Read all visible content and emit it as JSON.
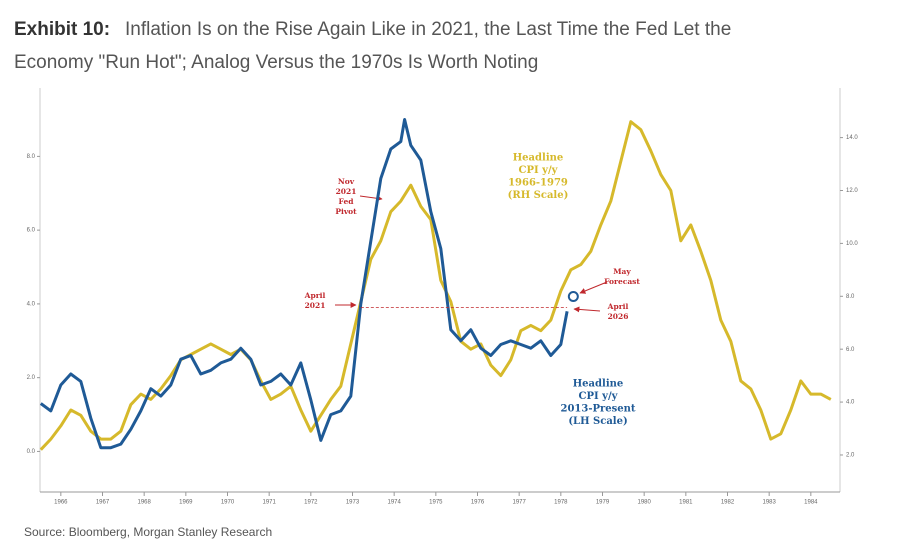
{
  "title_label": "Exhibit 10:",
  "title_lines": [
    "Inflation Is on the Rise Again Like in 2021, the Last Time the Fed Let the",
    "Economy \"Run Hot\"; Analog Versus the 1970s Is Worth Noting"
  ],
  "source": "Source: Bloomberg, Morgan Stanley Research",
  "chart_data": {
    "type": "line",
    "xlim": [
      1965.5,
      1984.7
    ],
    "xticks": [
      1966,
      1967,
      1968,
      1969,
      1970,
      1971,
      1972,
      1973,
      1974,
      1975,
      1976,
      1977,
      1978,
      1979,
      1980,
      1981,
      1982,
      1983,
      1984
    ],
    "ylim": [
      -1.1,
      9.8
    ],
    "yticks": [
      {
        "value": 0,
        "label": "0.0"
      },
      {
        "value": 2,
        "label": "2.0"
      },
      {
        "value": 4,
        "label": "4.0"
      },
      {
        "value": 6,
        "label": "6.0"
      },
      {
        "value": 8,
        "label": "8.0"
      }
    ],
    "y2lim": [
      0.6,
      15.8
    ],
    "y2ticks": [
      {
        "value": 2,
        "label": "2.0"
      },
      {
        "value": 4,
        "label": "4.0"
      },
      {
        "value": 6,
        "label": "6.0"
      },
      {
        "value": 8,
        "label": "8.0"
      },
      {
        "value": 10,
        "label": "10.0"
      },
      {
        "value": 12,
        "label": "12.0"
      },
      {
        "value": 14,
        "label": "14.0"
      }
    ],
    "series": [
      {
        "name": [
          "Headline",
          "CPI y/y",
          "1966-1979",
          "(RH Scale)"
        ],
        "color": "#d6b92b",
        "axis": "y2",
        "x": [
          1965.52,
          1965.76,
          1966.0,
          1966.24,
          1966.48,
          1966.72,
          1966.96,
          1967.2,
          1967.44,
          1967.68,
          1967.92,
          1968.16,
          1968.4,
          1968.64,
          1968.88,
          1969.12,
          1969.36,
          1969.6,
          1969.84,
          1970.08,
          1970.32,
          1970.56,
          1970.8,
          1971.04,
          1971.28,
          1971.52,
          1971.76,
          1972.0,
          1972.24,
          1972.48,
          1972.72,
          1972.96,
          1973.2,
          1973.44,
          1973.68,
          1973.92,
          1974.16,
          1974.4,
          1974.64,
          1974.88,
          1975.12,
          1975.36,
          1975.6,
          1975.84,
          1976.08,
          1976.32,
          1976.56,
          1976.8,
          1977.04,
          1977.28,
          1977.52,
          1977.76,
          1978.0,
          1978.24,
          1978.48,
          1978.72,
          1978.96,
          1979.2,
          1979.44,
          1979.68,
          1979.92,
          1980.16,
          1980.4,
          1980.64,
          1980.88,
          1981.12,
          1981.36,
          1981.6,
          1981.84,
          1982.08,
          1982.32,
          1982.56,
          1982.8,
          1983.04,
          1983.28,
          1983.52,
          1983.76,
          1984.0,
          1984.24,
          1984.48
        ],
        "values": [
          2.2,
          2.6,
          3.1,
          3.7,
          3.5,
          2.9,
          2.6,
          2.6,
          2.9,
          3.9,
          4.3,
          4.1,
          4.5,
          5.0,
          5.6,
          5.8,
          6.0,
          6.2,
          6.0,
          5.8,
          6.0,
          5.6,
          4.8,
          4.1,
          4.3,
          4.6,
          3.7,
          2.9,
          3.5,
          4.1,
          4.6,
          6.2,
          7.8,
          9.4,
          10.1,
          11.2,
          11.6,
          12.2,
          11.4,
          10.9,
          8.6,
          7.8,
          6.3,
          6.0,
          6.2,
          5.4,
          5.0,
          5.6,
          6.7,
          6.9,
          6.7,
          7.1,
          8.2,
          9.0,
          9.2,
          9.7,
          10.7,
          11.6,
          13.1,
          14.6,
          14.3,
          13.5,
          12.6,
          12.0,
          10.1,
          10.7,
          9.7,
          8.6,
          7.1,
          6.3,
          4.8,
          4.5,
          3.7,
          2.6,
          2.8,
          3.7,
          4.8,
          4.3,
          4.3,
          4.1
        ]
      },
      {
        "name": [
          "Headline",
          "CPI y/y",
          "2013-Present",
          "(LH Scale)"
        ],
        "color": "#1f5a96",
        "axis": "y",
        "x": [
          1965.52,
          1965.76,
          1966.0,
          1966.24,
          1966.48,
          1966.72,
          1966.96,
          1967.2,
          1967.44,
          1967.68,
          1967.92,
          1968.16,
          1968.4,
          1968.64,
          1968.88,
          1969.12,
          1969.36,
          1969.6,
          1969.84,
          1970.08,
          1970.32,
          1970.56,
          1970.8,
          1971.04,
          1971.28,
          1971.52,
          1971.76,
          1972.0,
          1972.24,
          1972.48,
          1972.72,
          1972.96,
          1973.2,
          1973.44,
          1973.68,
          1973.92,
          1974.16,
          1974.25,
          1974.4,
          1974.64,
          1974.88,
          1975.12,
          1975.36,
          1975.6,
          1975.84,
          1976.08,
          1976.32,
          1976.56,
          1976.8,
          1977.04,
          1977.28,
          1977.52,
          1977.76,
          1978.0,
          1978.15
        ],
        "values": [
          1.3,
          1.1,
          1.8,
          2.1,
          1.9,
          0.9,
          0.1,
          0.1,
          0.2,
          0.6,
          1.1,
          1.7,
          1.5,
          1.8,
          2.5,
          2.6,
          2.1,
          2.2,
          2.4,
          2.5,
          2.8,
          2.5,
          1.8,
          1.9,
          2.1,
          1.8,
          2.4,
          1.4,
          0.3,
          1.0,
          1.1,
          1.5,
          4.0,
          5.7,
          7.4,
          8.2,
          8.4,
          9.0,
          8.3,
          7.9,
          6.5,
          5.5,
          3.3,
          3.0,
          3.3,
          2.8,
          2.6,
          2.9,
          3.0,
          2.9,
          2.8,
          3.0,
          2.6,
          2.9,
          3.8
        ]
      }
    ],
    "reference_line": {
      "value": 3.9,
      "x": [
        1973.2,
        1978.15
      ]
    },
    "forecast": {
      "x": 1978.3,
      "value": 4.2
    },
    "annotations": [
      {
        "lines": [
          "Nov",
          "2021",
          "Fed",
          "Pivot"
        ]
      },
      {
        "lines": [
          "April",
          "2021"
        ]
      },
      {
        "lines": [
          "May",
          "Forecast"
        ]
      },
      {
        "lines": [
          "April",
          "2026"
        ]
      }
    ]
  }
}
